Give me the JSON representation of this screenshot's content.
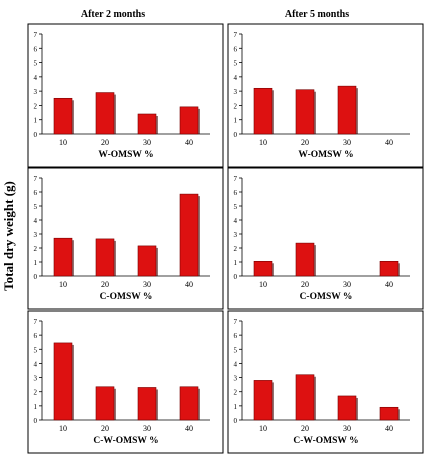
{
  "figure": {
    "column_titles": [
      "After 2 months",
      "After 5 months"
    ],
    "ylabel": "Total dry weight (g)"
  },
  "colors": {
    "bar_fill": "#dd1111",
    "bar_edge": "#7a0000",
    "bar_shadow": "#3a0000",
    "frame": "#000000"
  },
  "chart_data": [
    {
      "type": "bar",
      "col": 0,
      "row": 0,
      "categories": [
        "10",
        "20",
        "30",
        "40"
      ],
      "values": [
        2.5,
        2.9,
        1.4,
        1.9
      ],
      "xlabel": "W-OMSW %",
      "ylim": [
        0,
        7
      ],
      "yticks": [
        0,
        1,
        2,
        3,
        4,
        5,
        6,
        7
      ]
    },
    {
      "type": "bar",
      "col": 1,
      "row": 0,
      "categories": [
        "10",
        "20",
        "30",
        "40"
      ],
      "values": [
        3.2,
        3.1,
        3.35,
        null
      ],
      "xlabel": "W-OMSW %",
      "ylim": [
        0,
        7
      ],
      "yticks": [
        0,
        1,
        2,
        3,
        4,
        5,
        6,
        7
      ]
    },
    {
      "type": "bar",
      "col": 0,
      "row": 1,
      "categories": [
        "10",
        "20",
        "30",
        "40"
      ],
      "values": [
        2.7,
        2.65,
        2.15,
        5.85
      ],
      "xlabel": "C-OMSW %",
      "ylim": [
        0,
        7
      ],
      "yticks": [
        0,
        1,
        2,
        3,
        4,
        5,
        6,
        7
      ]
    },
    {
      "type": "bar",
      "col": 1,
      "row": 1,
      "categories": [
        "10",
        "20",
        "30",
        "40"
      ],
      "values": [
        1.05,
        2.35,
        null,
        1.05
      ],
      "xlabel": "C-OMSW %",
      "ylim": [
        0,
        7
      ],
      "yticks": [
        0,
        1,
        2,
        3,
        4,
        5,
        6,
        7
      ]
    },
    {
      "type": "bar",
      "col": 0,
      "row": 2,
      "categories": [
        "10",
        "20",
        "30",
        "40"
      ],
      "values": [
        5.45,
        2.35,
        2.3,
        2.35
      ],
      "xlabel": "C-W-OMSW %",
      "ylim": [
        0,
        7
      ],
      "yticks": [
        0,
        1,
        2,
        3,
        4,
        5,
        6,
        7
      ]
    },
    {
      "type": "bar",
      "col": 1,
      "row": 2,
      "categories": [
        "10",
        "20",
        "30",
        "40"
      ],
      "values": [
        2.8,
        3.2,
        1.7,
        0.9
      ],
      "xlabel": "C-W-OMSW %",
      "ylim": [
        0,
        7
      ],
      "yticks": [
        0,
        1,
        2,
        3,
        4,
        5,
        6,
        7
      ]
    }
  ]
}
